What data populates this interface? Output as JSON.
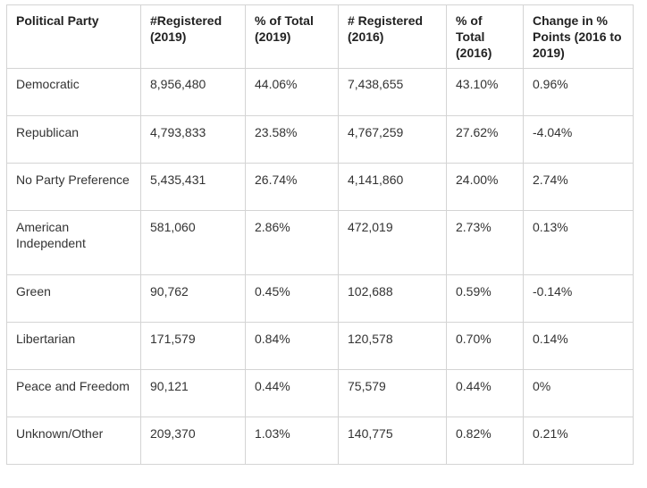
{
  "table": {
    "headers": [
      "Political Party",
      "#Registered (2019)",
      "% of Total (2019)",
      "# Registered (2016)",
      "% of Total (2016)",
      "Change in % Points (2016 to 2019)"
    ],
    "rows": [
      [
        "Democratic",
        "8,956,480",
        "44.06%",
        "7,438,655",
        "43.10%",
        "0.96%"
      ],
      [
        "Republican",
        "4,793,833",
        "23.58%",
        "4,767,259",
        "27.62%",
        "-4.04%"
      ],
      [
        "No Party Preference",
        "5,435,431",
        "26.74%",
        "4,141,860",
        "24.00%",
        "2.74%"
      ],
      [
        "American Independent",
        "581,060",
        "2.86%",
        "472,019",
        "2.73%",
        "0.13%"
      ],
      [
        "Green",
        "90,762",
        "0.45%",
        "102,688",
        "0.59%",
        "-0.14%"
      ],
      [
        "Libertarian",
        "171,579",
        "0.84%",
        "120,578",
        "0.70%",
        "0.14%"
      ],
      [
        "Peace and Freedom",
        "90,121",
        "0.44%",
        "75,579",
        "0.44%",
        "0%"
      ],
      [
        "Unknown/Other",
        "209,370",
        "1.03%",
        "140,775",
        "0.82%",
        "0.21%"
      ]
    ]
  }
}
